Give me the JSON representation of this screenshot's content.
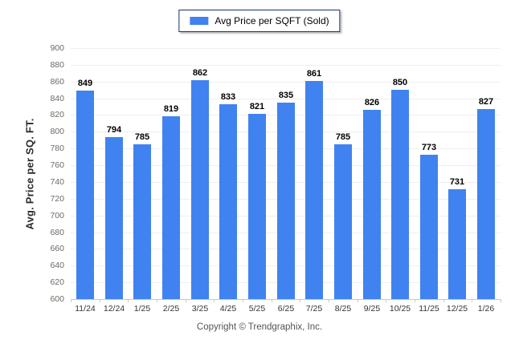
{
  "legend": {
    "label": "Avg Price per SQFT (Sold)"
  },
  "footer": {
    "copyright": "Copyright © Trendgraphix, Inc."
  },
  "colors": {
    "bar": "#4082f0",
    "grid": "#efefef",
    "axis": "#c9c9c9",
    "legend_border": "#17365d"
  },
  "chart_data": {
    "type": "bar",
    "title": "",
    "xlabel": "",
    "ylabel": "Avg. Price per SQ. FT.",
    "categories": [
      "11/24",
      "12/24",
      "1/25",
      "2/25",
      "3/25",
      "4/25",
      "5/25",
      "6/25",
      "7/25",
      "8/25",
      "9/25",
      "10/25",
      "11/25",
      "12/25",
      "1/26"
    ],
    "values": [
      849,
      794,
      785,
      819,
      862,
      833,
      821,
      835,
      861,
      785,
      826,
      850,
      773,
      731,
      827
    ],
    "series_name": "Avg Price per SQFT (Sold)",
    "ylim": [
      600,
      900
    ],
    "ytick_step": 20,
    "grid": true,
    "legend_position": "top-center",
    "value_labels": true
  }
}
